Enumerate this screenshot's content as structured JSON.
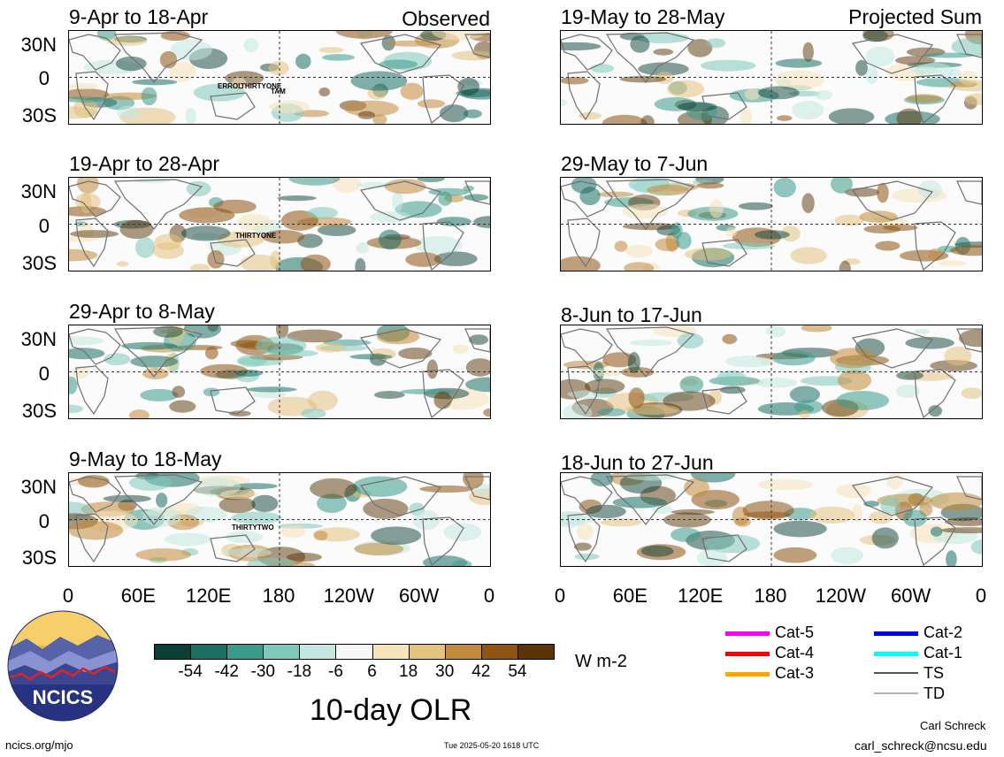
{
  "header": {
    "left_column_label": "Observed",
    "right_column_label": "Projected Sum"
  },
  "panels": [
    {
      "title": "9-Apr to 18-Apr",
      "column": "observed",
      "storms": [
        "ERROL",
        "THIRTYONE",
        "TAM"
      ]
    },
    {
      "title": "19-Apr to 28-Apr",
      "column": "observed",
      "storms": [
        "THIRTYONE"
      ]
    },
    {
      "title": "29-Apr to 8-May",
      "column": "observed",
      "storms": []
    },
    {
      "title": "9-May to 18-May",
      "column": "observed",
      "storms": [
        "THIRTYTWO"
      ]
    },
    {
      "title": "19-May to 28-May",
      "column": "projected",
      "storms": []
    },
    {
      "title": "29-May to 7-Jun",
      "column": "projected",
      "storms": []
    },
    {
      "title": "8-Jun to 17-Jun",
      "column": "projected",
      "storms": []
    },
    {
      "title": "18-Jun to 27-Jun",
      "column": "projected",
      "storms": []
    }
  ],
  "axes": {
    "lat_ticks": [
      "30N",
      "0",
      "30S"
    ],
    "lon_ticks": [
      "0",
      "60E",
      "120E",
      "180",
      "120W",
      "60W",
      "0"
    ]
  },
  "colorbar": {
    "labels": [
      "-54",
      "-42",
      "-30",
      "-18",
      "-6",
      "6",
      "18",
      "30",
      "42",
      "54"
    ],
    "colors": [
      "#0b3f36",
      "#1a6e62",
      "#3a9a8c",
      "#7fc9bc",
      "#c3e8e0",
      "#f7f7f7",
      "#f6e4bb",
      "#e2c37f",
      "#c18b3a",
      "#8e5413",
      "#5a3406"
    ],
    "units": "W m-2"
  },
  "title": "10-day OLR",
  "legend": [
    {
      "label": "Cat-5",
      "color": "#ff00ff"
    },
    {
      "label": "Cat-4",
      "color": "#ff0000"
    },
    {
      "label": "Cat-3",
      "color": "#ffa500"
    },
    {
      "label": "Cat-2",
      "color": "#0000ee"
    },
    {
      "label": "Cat-1",
      "color": "#00ffff"
    },
    {
      "label": "TS",
      "color": "#555555"
    },
    {
      "label": "TD",
      "color": "#b0b0b0"
    }
  ],
  "logo": {
    "text": "NCICS"
  },
  "footer": {
    "website": "ncics.org/mjo",
    "timestamp": "Tue 2025-05-20 1618 UTC",
    "author": "Carl Schreck",
    "email": "carl_schreck@ncsu.edu"
  },
  "chart_data": {
    "type": "heatmap",
    "variable": "10-day OLR",
    "units": "W m-2",
    "levels": [
      -54,
      -42,
      -30,
      -18,
      -6,
      6,
      18,
      30,
      42,
      54
    ],
    "lon_range": [
      "0",
      "0"
    ],
    "lat_range": [
      "30S",
      "30N"
    ]
  }
}
